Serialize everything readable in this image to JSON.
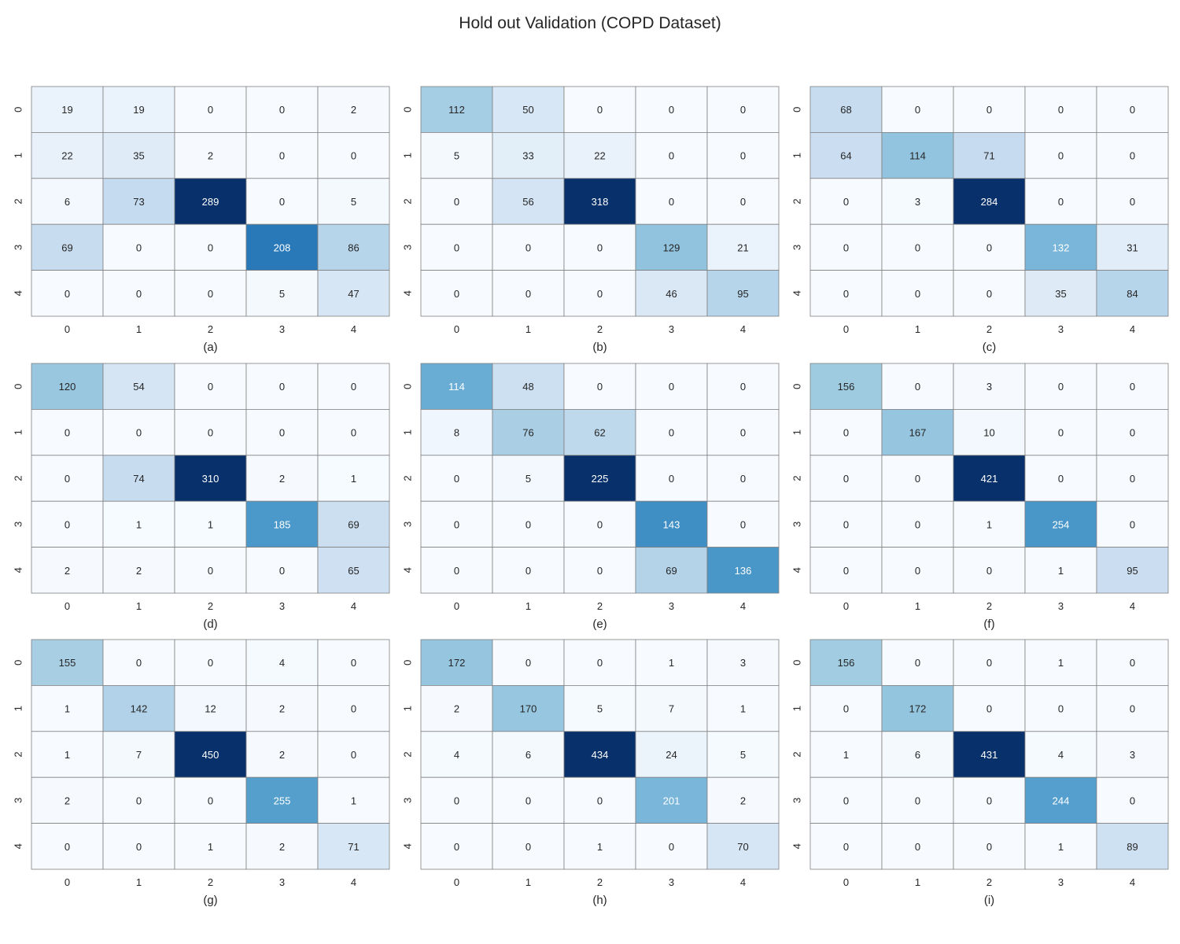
{
  "figure": {
    "title": "Hold out Validation (COPD Dataset)"
  },
  "colors": {
    "scale_low": "#f7fbff",
    "scale_mid": "#6baed6",
    "scale_high": "#08306b",
    "cell_border": "#808080",
    "dark_text": "#262626",
    "light_text": "#ffffff"
  },
  "chart_data": [
    {
      "type": "heatmap",
      "label": "(a)",
      "x_ticks": [
        "0",
        "1",
        "2",
        "3",
        "4"
      ],
      "y_ticks": [
        "0",
        "1",
        "2",
        "3",
        "4"
      ],
      "values": [
        [
          19,
          19,
          0,
          0,
          2
        ],
        [
          22,
          35,
          2,
          0,
          0
        ],
        [
          6,
          73,
          289,
          0,
          5
        ],
        [
          69,
          0,
          0,
          208,
          86
        ],
        [
          0,
          0,
          0,
          5,
          47
        ]
      ]
    },
    {
      "type": "heatmap",
      "label": "(b)",
      "x_ticks": [
        "0",
        "1",
        "2",
        "3",
        "4"
      ],
      "y_ticks": [
        "0",
        "1",
        "2",
        "3",
        "4"
      ],
      "values": [
        [
          112,
          50,
          0,
          0,
          0
        ],
        [
          5,
          33,
          22,
          0,
          0
        ],
        [
          0,
          56,
          318,
          0,
          0
        ],
        [
          0,
          0,
          0,
          129,
          21
        ],
        [
          0,
          0,
          0,
          46,
          95
        ]
      ]
    },
    {
      "type": "heatmap",
      "label": "(c)",
      "x_ticks": [
        "0",
        "1",
        "2",
        "3",
        "4"
      ],
      "y_ticks": [
        "0",
        "1",
        "2",
        "3",
        "4"
      ],
      "values": [
        [
          68,
          0,
          0,
          0,
          0
        ],
        [
          64,
          114,
          71,
          0,
          0
        ],
        [
          0,
          3,
          284,
          0,
          0
        ],
        [
          0,
          0,
          0,
          132,
          31
        ],
        [
          0,
          0,
          0,
          35,
          84
        ]
      ]
    },
    {
      "type": "heatmap",
      "label": "(d)",
      "x_ticks": [
        "0",
        "1",
        "2",
        "3",
        "4"
      ],
      "y_ticks": [
        "0",
        "1",
        "2",
        "3",
        "4"
      ],
      "values": [
        [
          120,
          54,
          0,
          0,
          0
        ],
        [
          0,
          0,
          0,
          0,
          0
        ],
        [
          0,
          74,
          310,
          2,
          1
        ],
        [
          0,
          1,
          1,
          185,
          69
        ],
        [
          2,
          2,
          0,
          0,
          65
        ]
      ]
    },
    {
      "type": "heatmap",
      "label": "(e)",
      "x_ticks": [
        "0",
        "1",
        "2",
        "3",
        "4"
      ],
      "y_ticks": [
        "0",
        "1",
        "2",
        "3",
        "4"
      ],
      "values": [
        [
          114,
          48,
          0,
          0,
          0
        ],
        [
          8,
          76,
          62,
          0,
          0
        ],
        [
          0,
          5,
          225,
          0,
          0
        ],
        [
          0,
          0,
          0,
          143,
          0
        ],
        [
          0,
          0,
          0,
          69,
          136
        ]
      ]
    },
    {
      "type": "heatmap",
      "label": "(f)",
      "x_ticks": [
        "0",
        "1",
        "2",
        "3",
        "4"
      ],
      "y_ticks": [
        "0",
        "1",
        "2",
        "3",
        "4"
      ],
      "values": [
        [
          156,
          0,
          3,
          0,
          0
        ],
        [
          0,
          167,
          10,
          0,
          0
        ],
        [
          0,
          0,
          421,
          0,
          0
        ],
        [
          0,
          0,
          1,
          254,
          0
        ],
        [
          0,
          0,
          0,
          1,
          95
        ]
      ]
    },
    {
      "type": "heatmap",
      "label": "(g)",
      "x_ticks": [
        "0",
        "1",
        "2",
        "3",
        "4"
      ],
      "y_ticks": [
        "0",
        "1",
        "2",
        "3",
        "4"
      ],
      "values": [
        [
          155,
          0,
          0,
          4,
          0
        ],
        [
          1,
          142,
          12,
          2,
          0
        ],
        [
          1,
          7,
          450,
          2,
          0
        ],
        [
          2,
          0,
          0,
          255,
          1
        ],
        [
          0,
          0,
          1,
          2,
          71
        ]
      ]
    },
    {
      "type": "heatmap",
      "label": "(h)",
      "x_ticks": [
        "0",
        "1",
        "2",
        "3",
        "4"
      ],
      "y_ticks": [
        "0",
        "1",
        "2",
        "3",
        "4"
      ],
      "values": [
        [
          172,
          0,
          0,
          1,
          3
        ],
        [
          2,
          170,
          5,
          7,
          1
        ],
        [
          4,
          6,
          434,
          24,
          5
        ],
        [
          0,
          0,
          0,
          201,
          2
        ],
        [
          0,
          0,
          1,
          0,
          70
        ]
      ]
    },
    {
      "type": "heatmap",
      "label": "(i)",
      "x_ticks": [
        "0",
        "1",
        "2",
        "3",
        "4"
      ],
      "y_ticks": [
        "0",
        "1",
        "2",
        "3",
        "4"
      ],
      "values": [
        [
          156,
          0,
          0,
          1,
          0
        ],
        [
          0,
          172,
          0,
          0,
          0
        ],
        [
          1,
          6,
          431,
          4,
          3
        ],
        [
          0,
          0,
          0,
          244,
          0
        ],
        [
          0,
          0,
          0,
          1,
          89
        ]
      ]
    }
  ]
}
